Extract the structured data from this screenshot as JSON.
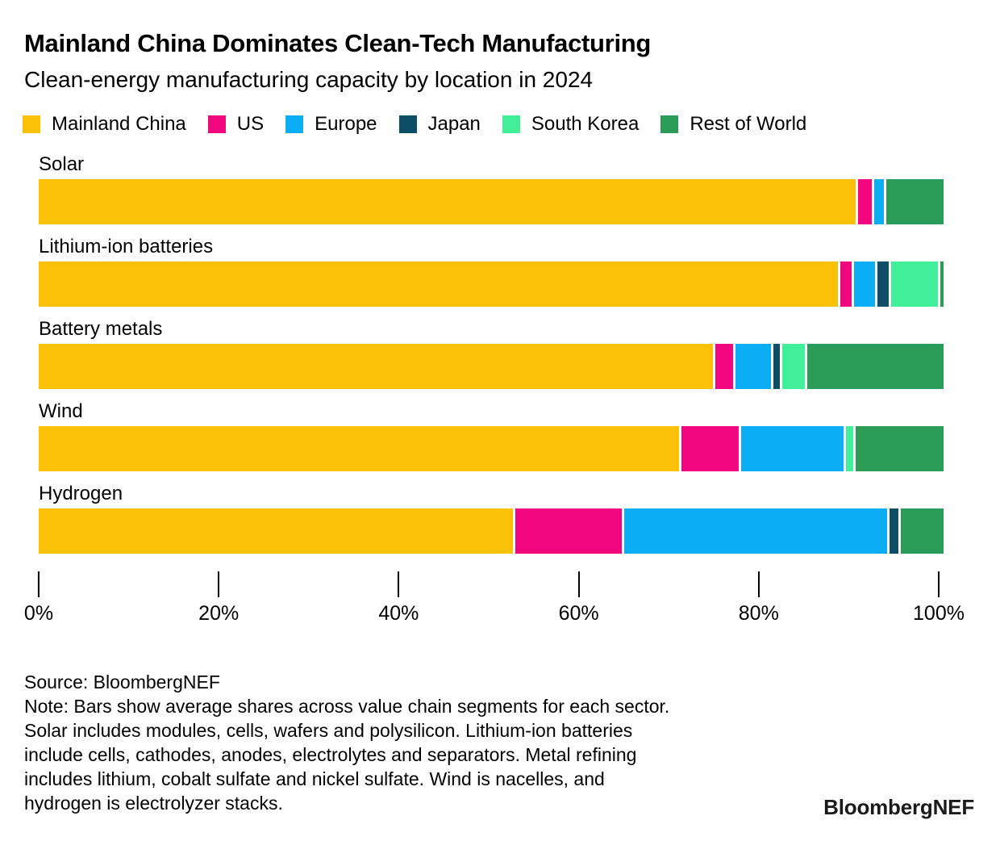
{
  "header": {
    "title": "Mainland China Dominates Clean-Tech Manufacturing",
    "subtitle": "Clean-energy manufacturing capacity by location in 2024"
  },
  "colors": {
    "mainland_china": "#FBC108",
    "us": "#F2067F",
    "europe": "#0BAEF4",
    "japan": "#0E4D66",
    "south_korea": "#41EF98",
    "rest_of_world": "#2A9C58"
  },
  "chart_data": {
    "type": "bar",
    "orientation": "horizontal",
    "stacked": true,
    "unit": "percent",
    "title": "Mainland China Dominates Clean-Tech Manufacturing",
    "subtitle": "Clean-energy manufacturing capacity by location in 2024",
    "xlabel": "",
    "ylabel": "",
    "legend_position": "top",
    "grid": false,
    "categories": [
      "Solar",
      "Lithium-ion batteries",
      "Battery metals",
      "Wind",
      "Hydrogen"
    ],
    "series": [
      {
        "name": "Mainland China",
        "color": "#FBC108",
        "values": [
          91.0,
          89.5,
          75.5,
          71.5,
          53.0
        ]
      },
      {
        "name": "US",
        "color": "#F2067F",
        "values": [
          1.5,
          1.3,
          2.0,
          6.4,
          11.9
        ]
      },
      {
        "name": "Europe",
        "color": "#0BAEF4",
        "values": [
          1.1,
          2.3,
          4.0,
          11.5,
          29.3
        ]
      },
      {
        "name": "Japan",
        "color": "#0E4D66",
        "values": [
          0,
          1.3,
          0.7,
          0,
          1.0
        ]
      },
      {
        "name": "South Korea",
        "color": "#41EF98",
        "values": [
          0,
          5.2,
          2.5,
          0.8,
          0
        ]
      },
      {
        "name": "Rest of World",
        "color": "#2A9C58",
        "values": [
          6.4,
          0.4,
          15.3,
          9.8,
          4.8
        ]
      }
    ],
    "x_axis": {
      "range": [
        0,
        100
      ],
      "tick_labels": [
        "0%",
        "20%",
        "40%",
        "60%",
        "80%",
        "100%"
      ],
      "tick_values": [
        0,
        20,
        40,
        60,
        80,
        100
      ]
    }
  },
  "footer": {
    "source": "Source: BloombergNEF",
    "note_lines": [
      "Note: Bars show average shares across value chain segments for each sector.",
      "Solar includes modules, cells, wafers and polysilicon. Lithium-ion batteries",
      "include cells, cathodes, anodes, electrolytes and separators. Metal refining",
      "includes lithium, cobalt sulfate and nickel sulfate. Wind is nacelles, and",
      "hydrogen is electrolyzer stacks."
    ],
    "logo": "BloombergNEF"
  }
}
